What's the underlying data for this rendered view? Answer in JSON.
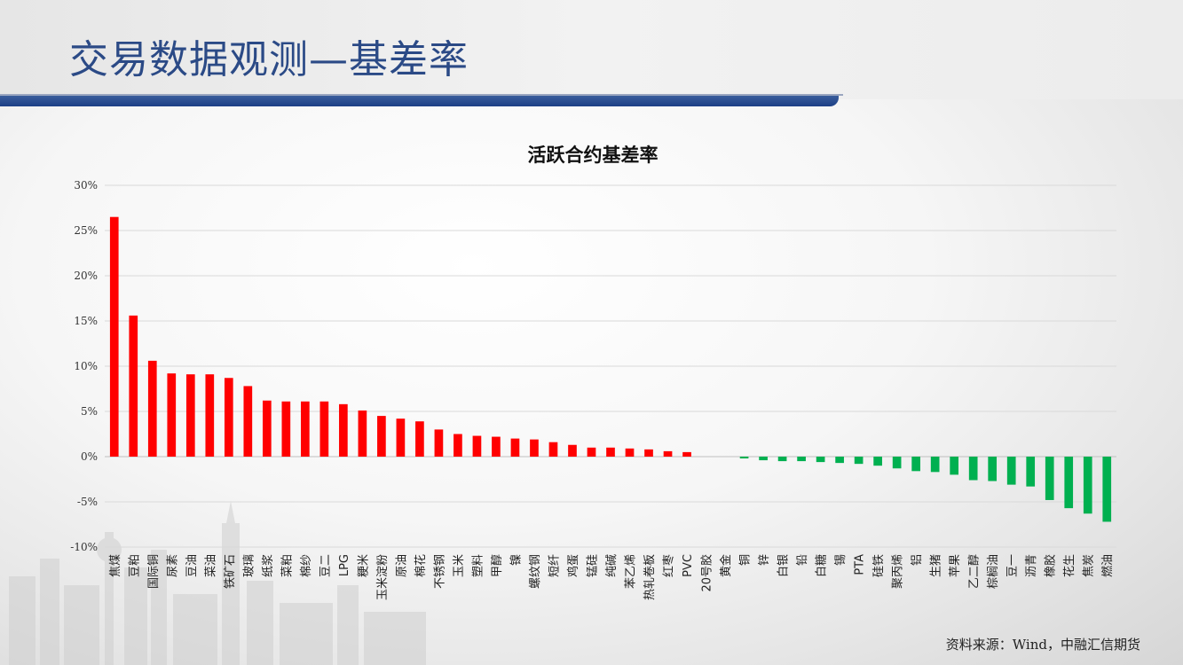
{
  "page": {
    "title": "交易数据观测—基差率",
    "source": "资料来源：Wind，中融汇信期货"
  },
  "chart_data": {
    "type": "bar",
    "title": "活跃合约基差率",
    "xlabel": "",
    "ylabel": "",
    "ylim": [
      -0.1,
      0.3
    ],
    "yticks": [
      -0.1,
      -0.05,
      0,
      0.05,
      0.1,
      0.15,
      0.2,
      0.25,
      0.3
    ],
    "ytick_labels": [
      "-10%",
      "-5%",
      "0%",
      "5%",
      "10%",
      "15%",
      "20%",
      "25%",
      "30%"
    ],
    "grid": true,
    "colors": {
      "positive": "#ff0000",
      "negative": "#00b050",
      "grid": "#d9d9d9"
    },
    "categories": [
      "焦煤",
      "豆粕",
      "国际铜",
      "尿素",
      "豆油",
      "菜油",
      "铁矿石",
      "玻璃",
      "纸浆",
      "菜粕",
      "棉纱",
      "豆二",
      "LPG",
      "粳米",
      "玉米淀粉",
      "原油",
      "棉花",
      "不锈钢",
      "玉米",
      "塑料",
      "甲醇",
      "镍",
      "螺纹钢",
      "短纤",
      "鸡蛋",
      "锰硅",
      "纯碱",
      "苯乙烯",
      "热轧卷板",
      "红枣",
      "PVC",
      "20号胶",
      "黄金",
      "铜",
      "锌",
      "白银",
      "铅",
      "白糖",
      "锡",
      "PTA",
      "硅铁",
      "聚丙烯",
      "铝",
      "生猪",
      "苹果",
      "乙二醇",
      "棕榈油",
      "豆一",
      "沥青",
      "橡胶",
      "花生",
      "焦炭",
      "燃油"
    ],
    "values": [
      0.265,
      0.156,
      0.106,
      0.092,
      0.091,
      0.091,
      0.087,
      0.078,
      0.062,
      0.061,
      0.061,
      0.061,
      0.058,
      0.051,
      0.045,
      0.042,
      0.039,
      0.03,
      0.025,
      0.023,
      0.022,
      0.02,
      0.019,
      0.016,
      0.013,
      0.01,
      0.01,
      0.009,
      0.008,
      0.006,
      0.005,
      0.0,
      0.0,
      -0.002,
      -0.004,
      -0.005,
      -0.005,
      -0.006,
      -0.007,
      -0.008,
      -0.01,
      -0.013,
      -0.016,
      -0.017,
      -0.02,
      -0.026,
      -0.027,
      -0.031,
      -0.033,
      -0.048,
      -0.057,
      -0.063,
      -0.072
    ]
  }
}
